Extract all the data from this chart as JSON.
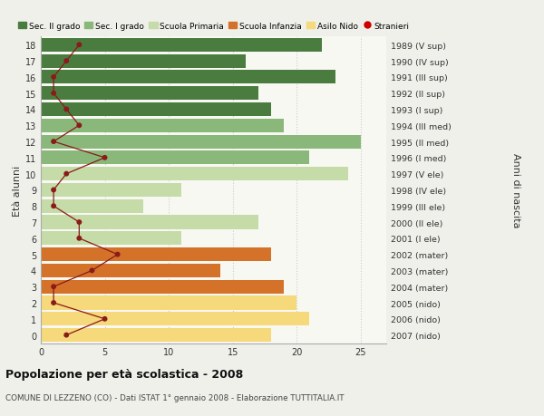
{
  "ages": [
    18,
    17,
    16,
    15,
    14,
    13,
    12,
    11,
    10,
    9,
    8,
    7,
    6,
    5,
    4,
    3,
    2,
    1,
    0
  ],
  "right_labels": [
    "1989 (V sup)",
    "1990 (IV sup)",
    "1991 (III sup)",
    "1992 (II sup)",
    "1993 (I sup)",
    "1994 (III med)",
    "1995 (II med)",
    "1996 (I med)",
    "1997 (V ele)",
    "1998 (IV ele)",
    "1999 (III ele)",
    "2000 (II ele)",
    "2001 (I ele)",
    "2002 (mater)",
    "2003 (mater)",
    "2004 (mater)",
    "2005 (nido)",
    "2006 (nido)",
    "2007 (nido)"
  ],
  "bar_values": [
    22,
    16,
    23,
    17,
    18,
    19,
    25,
    21,
    24,
    11,
    8,
    17,
    11,
    18,
    14,
    19,
    20,
    21,
    18
  ],
  "bar_colors": [
    "#4a7c40",
    "#4a7c40",
    "#4a7c40",
    "#4a7c40",
    "#4a7c40",
    "#8ab87a",
    "#8ab87a",
    "#8ab87a",
    "#c5dba8",
    "#c5dba8",
    "#c5dba8",
    "#c5dba8",
    "#c5dba8",
    "#d4722a",
    "#d4722a",
    "#d4722a",
    "#f5d97a",
    "#f5d97a",
    "#f5d97a"
  ],
  "stranieri_values": [
    3,
    2,
    1,
    1,
    2,
    3,
    1,
    5,
    2,
    1,
    1,
    3,
    3,
    6,
    4,
    1,
    1,
    5,
    2
  ],
  "stranieri_color": "#8b1a1a",
  "xlim": [
    0,
    27
  ],
  "xticks": [
    0,
    5,
    10,
    15,
    20,
    25
  ],
  "ylabel_left": "Età alunni",
  "ylabel_right": "Anni di nascita",
  "title_bold": "Popolazione per età scolastica - 2008",
  "subtitle": "COMUNE DI LEZZENO (CO) - Dati ISTAT 1° gennaio 2008 - Elaborazione TUTTITALIA.IT",
  "legend_items": [
    {
      "label": "Sec. II grado",
      "color": "#4a7c40",
      "type": "patch"
    },
    {
      "label": "Sec. I grado",
      "color": "#8ab87a",
      "type": "patch"
    },
    {
      "label": "Scuola Primaria",
      "color": "#c5dba8",
      "type": "patch"
    },
    {
      "label": "Scuola Infanzia",
      "color": "#d4722a",
      "type": "patch"
    },
    {
      "label": "Asilo Nido",
      "color": "#f5d97a",
      "type": "patch"
    },
    {
      "label": "Stranieri",
      "color": "#cc0000",
      "type": "dot"
    }
  ],
  "bg_color": "#f0f0eb",
  "plot_bg": "#f8f8f3",
  "grid_color": "#cccccc"
}
